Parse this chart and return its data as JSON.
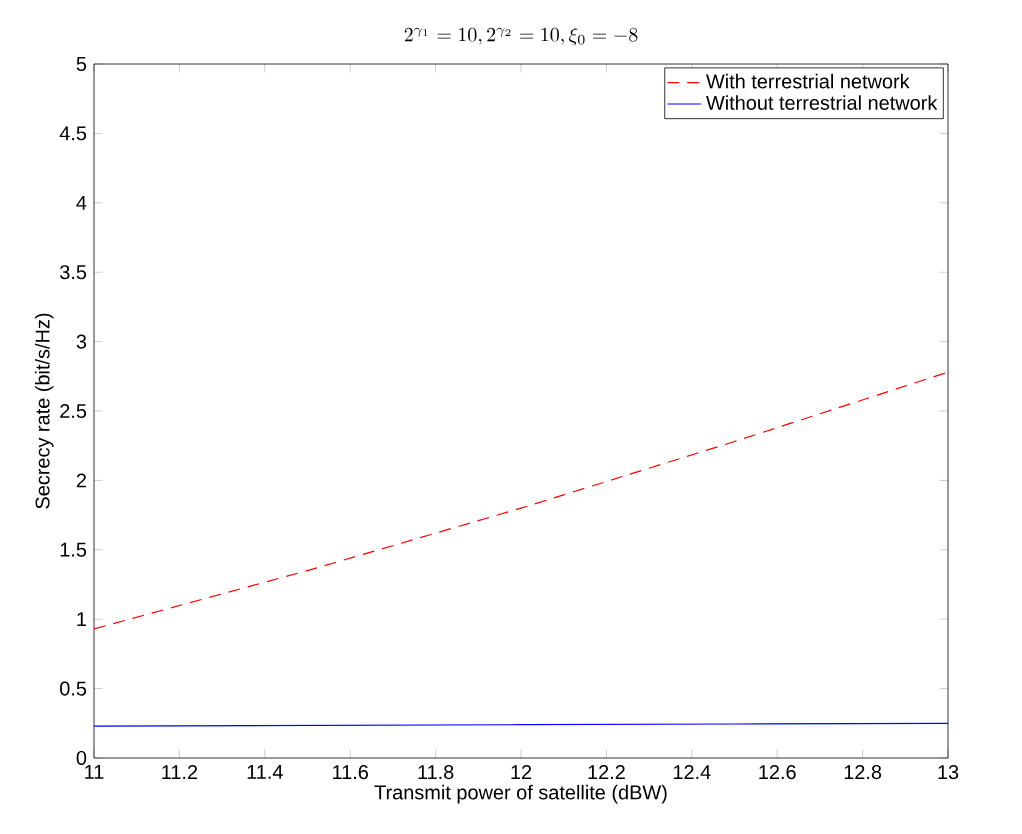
{
  "chart_data": {
    "type": "line",
    "title": "2^{\\gamma_1}=10,2^{\\gamma_2}=10,\\xi_0=-8",
    "xlabel": "Transmit power of satellite (dBW)",
    "ylabel": "Secrecy rate (bit/s/Hz)",
    "x": [
      11,
      11.5,
      12,
      12.5,
      13
    ],
    "series": [
      {
        "name": "With terrestrial network",
        "color": "#ff0000",
        "line_style": "dashed",
        "values": [
          0.93,
          1.35,
          1.8,
          2.28,
          2.78
        ]
      },
      {
        "name": "Without terrestrial network",
        "color": "#0000ff",
        "line_style": "solid",
        "values": [
          0.23,
          0.235,
          0.24,
          0.245,
          0.25
        ]
      }
    ],
    "xlim": [
      11,
      13
    ],
    "ylim": [
      0,
      5
    ],
    "xticks": [
      11,
      11.2,
      11.4,
      11.6,
      11.8,
      12,
      12.2,
      12.4,
      12.6,
      12.8,
      13
    ],
    "yticks": [
      0,
      0.5,
      1,
      1.5,
      2,
      2.5,
      3,
      3.5,
      4,
      4.5,
      5
    ],
    "grid": false,
    "legend": "top right",
    "marker": "none"
  }
}
